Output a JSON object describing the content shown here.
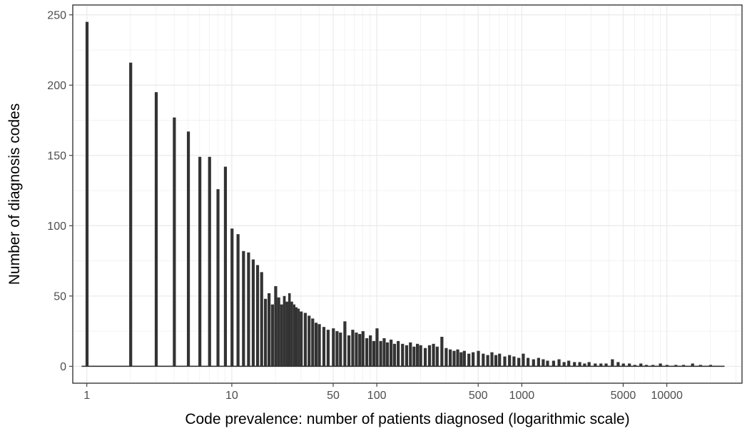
{
  "chart_data": {
    "type": "bar",
    "title": "",
    "xlabel": "Code prevalence: number of patients diagnosed (logarithmic scale)",
    "ylabel": "Number of diagnosis codes",
    "x_scale": "log10",
    "xlim": [
      0.8,
      33000
    ],
    "ylim": [
      -12,
      257
    ],
    "grid": true,
    "legend": "none",
    "bar_color": "#333333",
    "grid_color": "#ebebeb",
    "x_ticks": [
      {
        "value": 1,
        "label": "1"
      },
      {
        "value": 10,
        "label": "10"
      },
      {
        "value": 50,
        "label": "50"
      },
      {
        "value": 100,
        "label": "100"
      },
      {
        "value": 500,
        "label": "500"
      },
      {
        "value": 1000,
        "label": "1000"
      },
      {
        "value": 5000,
        "label": "5000"
      },
      {
        "value": 10000,
        "label": "10000"
      }
    ],
    "y_ticks": [
      {
        "value": 0,
        "label": "0"
      },
      {
        "value": 50,
        "label": "50"
      },
      {
        "value": 100,
        "label": "100"
      },
      {
        "value": 150,
        "label": "150"
      },
      {
        "value": 200,
        "label": "200"
      },
      {
        "value": 250,
        "label": "250"
      }
    ],
    "bins": [
      {
        "x": 1,
        "y": 245
      },
      {
        "x": 2,
        "y": 216
      },
      {
        "x": 3,
        "y": 195
      },
      {
        "x": 4,
        "y": 177
      },
      {
        "x": 5,
        "y": 167
      },
      {
        "x": 6,
        "y": 149
      },
      {
        "x": 7,
        "y": 149
      },
      {
        "x": 8,
        "y": 126
      },
      {
        "x": 9,
        "y": 142
      },
      {
        "x": 10,
        "y": 98
      },
      {
        "x": 11,
        "y": 94
      },
      {
        "x": 12,
        "y": 82
      },
      {
        "x": 13,
        "y": 81
      },
      {
        "x": 14,
        "y": 76
      },
      {
        "x": 15,
        "y": 72
      },
      {
        "x": 16,
        "y": 67
      },
      {
        "x": 17,
        "y": 48
      },
      {
        "x": 18,
        "y": 52
      },
      {
        "x": 19,
        "y": 44
      },
      {
        "x": 20,
        "y": 57
      },
      {
        "x": 21,
        "y": 49
      },
      {
        "x": 22,
        "y": 44
      },
      {
        "x": 23,
        "y": 50
      },
      {
        "x": 24,
        "y": 46
      },
      {
        "x": 25,
        "y": 52
      },
      {
        "x": 26,
        "y": 46
      },
      {
        "x": 27,
        "y": 44
      },
      {
        "x": 28,
        "y": 42
      },
      {
        "x": 29,
        "y": 41
      },
      {
        "x": 30,
        "y": 39
      },
      {
        "x": 32,
        "y": 38
      },
      {
        "x": 34,
        "y": 36
      },
      {
        "x": 36,
        "y": 34
      },
      {
        "x": 38,
        "y": 31
      },
      {
        "x": 40,
        "y": 30
      },
      {
        "x": 43,
        "y": 28
      },
      {
        "x": 46,
        "y": 26
      },
      {
        "x": 50,
        "y": 27
      },
      {
        "x": 53,
        "y": 25
      },
      {
        "x": 56,
        "y": 24
      },
      {
        "x": 60,
        "y": 32
      },
      {
        "x": 64,
        "y": 22
      },
      {
        "x": 68,
        "y": 26
      },
      {
        "x": 72,
        "y": 24
      },
      {
        "x": 76,
        "y": 23
      },
      {
        "x": 80,
        "y": 25
      },
      {
        "x": 85,
        "y": 20
      },
      {
        "x": 90,
        "y": 22
      },
      {
        "x": 95,
        "y": 18
      },
      {
        "x": 100,
        "y": 27
      },
      {
        "x": 106,
        "y": 18
      },
      {
        "x": 112,
        "y": 20
      },
      {
        "x": 118,
        "y": 17
      },
      {
        "x": 125,
        "y": 19
      },
      {
        "x": 132,
        "y": 16
      },
      {
        "x": 140,
        "y": 18
      },
      {
        "x": 150,
        "y": 16
      },
      {
        "x": 160,
        "y": 15
      },
      {
        "x": 170,
        "y": 17
      },
      {
        "x": 180,
        "y": 14
      },
      {
        "x": 190,
        "y": 16
      },
      {
        "x": 200,
        "y": 15
      },
      {
        "x": 215,
        "y": 13
      },
      {
        "x": 230,
        "y": 15
      },
      {
        "x": 245,
        "y": 16
      },
      {
        "x": 260,
        "y": 14
      },
      {
        "x": 280,
        "y": 21
      },
      {
        "x": 300,
        "y": 13
      },
      {
        "x": 320,
        "y": 12
      },
      {
        "x": 340,
        "y": 11
      },
      {
        "x": 360,
        "y": 12
      },
      {
        "x": 380,
        "y": 10
      },
      {
        "x": 400,
        "y": 11
      },
      {
        "x": 430,
        "y": 9
      },
      {
        "x": 460,
        "y": 10
      },
      {
        "x": 500,
        "y": 11
      },
      {
        "x": 540,
        "y": 9
      },
      {
        "x": 580,
        "y": 8
      },
      {
        "x": 620,
        "y": 10
      },
      {
        "x": 660,
        "y": 8
      },
      {
        "x": 700,
        "y": 9
      },
      {
        "x": 760,
        "y": 7
      },
      {
        "x": 820,
        "y": 8
      },
      {
        "x": 880,
        "y": 7
      },
      {
        "x": 950,
        "y": 6
      },
      {
        "x": 1020,
        "y": 9
      },
      {
        "x": 1100,
        "y": 6
      },
      {
        "x": 1200,
        "y": 5
      },
      {
        "x": 1300,
        "y": 6
      },
      {
        "x": 1400,
        "y": 5
      },
      {
        "x": 1500,
        "y": 4
      },
      {
        "x": 1650,
        "y": 4
      },
      {
        "x": 1800,
        "y": 5
      },
      {
        "x": 1950,
        "y": 3
      },
      {
        "x": 2100,
        "y": 4
      },
      {
        "x": 2300,
        "y": 3
      },
      {
        "x": 2500,
        "y": 3
      },
      {
        "x": 2700,
        "y": 2
      },
      {
        "x": 2900,
        "y": 3
      },
      {
        "x": 3200,
        "y": 2
      },
      {
        "x": 3500,
        "y": 2
      },
      {
        "x": 3800,
        "y": 2
      },
      {
        "x": 4200,
        "y": 5
      },
      {
        "x": 4600,
        "y": 3
      },
      {
        "x": 5000,
        "y": 2
      },
      {
        "x": 5500,
        "y": 2
      },
      {
        "x": 6000,
        "y": 1
      },
      {
        "x": 6600,
        "y": 2
      },
      {
        "x": 7200,
        "y": 1
      },
      {
        "x": 8000,
        "y": 1
      },
      {
        "x": 9000,
        "y": 2
      },
      {
        "x": 10000,
        "y": 1
      },
      {
        "x": 11500,
        "y": 1
      },
      {
        "x": 13000,
        "y": 1
      },
      {
        "x": 15000,
        "y": 2
      },
      {
        "x": 17000,
        "y": 1
      },
      {
        "x": 20000,
        "y": 1
      }
    ]
  }
}
